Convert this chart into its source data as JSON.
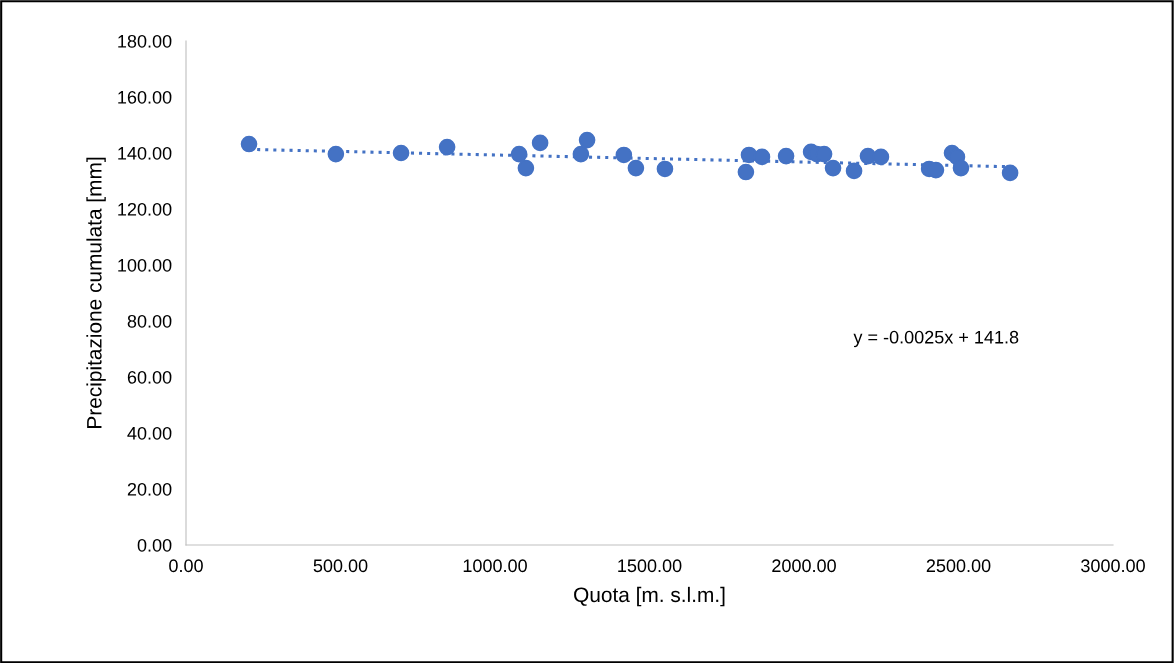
{
  "chart_data": {
    "type": "scatter",
    "xlabel": "Quota [m. s.l.m.]",
    "ylabel": "Precipitazione cumulata [mm]",
    "annotations": [
      "y = -0.0025x + 141.8"
    ],
    "series": [
      {
        "color": "#4472c4",
        "marker": "circle",
        "x": [
          204,
          485,
          696,
          845,
          1078,
          1100,
          1146,
          1278,
          1298,
          1417,
          1456,
          1550,
          1812,
          1822,
          1864,
          1942,
          2023,
          2042,
          2065,
          2094,
          2162,
          2207,
          2249,
          2405,
          2427,
          2479,
          2495,
          2508,
          2667
        ],
        "values": [
          143.2,
          139.6,
          140.0,
          142.1,
          139.6,
          134.6,
          143.6,
          139.6,
          144.6,
          139.3,
          134.6,
          134.3,
          133.2,
          139.3,
          138.6,
          138.9,
          140.4,
          139.6,
          139.6,
          134.6,
          133.6,
          138.9,
          138.6,
          134.3,
          133.9,
          140.0,
          138.6,
          134.6,
          132.9
        ]
      },
      {
        "type": "line",
        "color": "#4472c4",
        "line_style": "dotted",
        "x": [
          204,
          2667
        ],
        "values": [
          141.3,
          135.1
        ]
      }
    ],
    "xlim": [
      0,
      3000
    ],
    "xticks": [
      {
        "value": 0,
        "label": "0.00"
      },
      {
        "value": 500,
        "label": "500.00"
      },
      {
        "value": 1000,
        "label": "1000.00"
      },
      {
        "value": 1500,
        "label": "1500.00"
      },
      {
        "value": 2000,
        "label": "2000.00"
      },
      {
        "value": 2500,
        "label": "2500.00"
      },
      {
        "value": 3000,
        "label": "3000.00"
      }
    ],
    "ylim": [
      0,
      180
    ],
    "yticks": [
      {
        "value": 0,
        "label": "0.00"
      },
      {
        "value": 20,
        "label": "20.00"
      },
      {
        "value": 40,
        "label": "40.00"
      },
      {
        "value": 60,
        "label": "60.00"
      },
      {
        "value": 80,
        "label": "80.00"
      },
      {
        "value": 100,
        "label": "100.00"
      },
      {
        "value": 120,
        "label": "120.00"
      },
      {
        "value": 140,
        "label": "140.00"
      },
      {
        "value": 160,
        "label": "160.00"
      },
      {
        "value": 180,
        "label": "180.00"
      }
    ],
    "grid": false
  }
}
